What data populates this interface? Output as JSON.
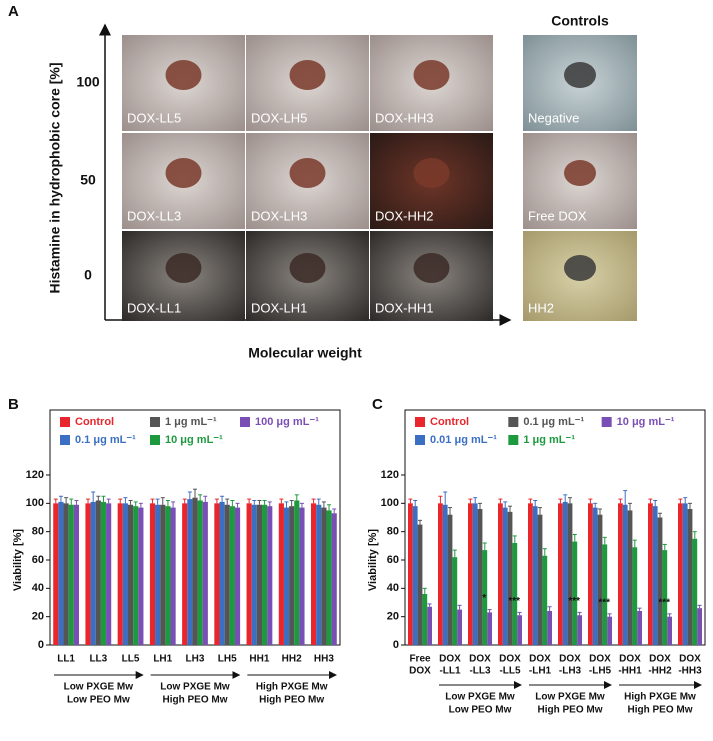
{
  "panel_a": {
    "label": "A",
    "y_axis_label": "Histamine in hydrophobic core  [%]",
    "x_axis_label": "Molecular weight",
    "row_labels": [
      "100",
      "50",
      "0"
    ],
    "images": [
      [
        "DOX-LL5",
        "DOX-LH5",
        "DOX-HH3"
      ],
      [
        "DOX-LL3",
        "DOX-LH3",
        "DOX-HH2"
      ],
      [
        "DOX-LL1",
        "DOX-LH1",
        "DOX-HH1"
      ]
    ],
    "controls_title": "Controls",
    "controls": [
      "Negative",
      "Free DOX",
      "HH2"
    ]
  },
  "chart_data": [
    {
      "type": "bar",
      "label": "B",
      "y_axis_label": "Viability [%]",
      "categories": [
        [
          "LL1"
        ],
        [
          "LL3"
        ],
        [
          "LL5"
        ],
        [
          "LH1"
        ],
        [
          "LH3"
        ],
        [
          "LH5"
        ],
        [
          "HH1"
        ],
        [
          "HH2"
        ],
        [
          "HH3"
        ]
      ],
      "ylim": [
        0,
        120
      ],
      "yticks": [
        0,
        20,
        40,
        60,
        80,
        100,
        120
      ],
      "series": [
        {
          "name": "Control",
          "color": "#e8262b",
          "values": [
            100,
            100,
            100,
            100,
            100,
            100,
            100,
            100,
            100
          ],
          "errors": [
            3,
            3,
            3,
            3,
            3,
            3,
            3,
            3,
            3
          ]
        },
        {
          "name": "0.1 μg mL⁻¹",
          "color": "#3b6fc4",
          "values": [
            101,
            101,
            100,
            99,
            103,
            101,
            99,
            97,
            99
          ],
          "errors": [
            4,
            7,
            4,
            4,
            5,
            4,
            3,
            4,
            4
          ]
        },
        {
          "name": "1 μg mL⁻¹",
          "color": "#555555",
          "values": [
            100,
            102,
            99,
            99,
            104,
            99,
            99,
            98,
            97
          ],
          "errors": [
            4,
            3,
            3,
            5,
            6,
            4,
            3,
            4,
            4
          ]
        },
        {
          "name": "10 μg mL⁻¹",
          "color": "#1e9a3e",
          "values": [
            99,
            101,
            98,
            98,
            102,
            98,
            99,
            102,
            95
          ],
          "errors": [
            4,
            4,
            3,
            4,
            4,
            4,
            3,
            4,
            4
          ]
        },
        {
          "name": "100 μg mL⁻¹",
          "color": "#7a4fb5",
          "values": [
            99,
            100,
            97,
            97,
            101,
            97,
            98,
            97,
            93
          ],
          "errors": [
            3,
            3,
            3,
            4,
            4,
            3,
            3,
            3,
            3
          ]
        }
      ],
      "significance": [
        null,
        null,
        null,
        null,
        null,
        null,
        null,
        null,
        null
      ],
      "groups": [
        [
          "Low PXGE Mw",
          "Low PEO Mw"
        ],
        [
          "Low PXGE Mw",
          "High PEO Mw"
        ],
        [
          "High PXGE Mw",
          "High PEO Mw"
        ]
      ]
    },
    {
      "type": "bar",
      "label": "C",
      "y_axis_label": "Viability [%]",
      "categories": [
        [
          "Free",
          "DOX"
        ],
        [
          "DOX",
          "-LL1"
        ],
        [
          "DOX",
          "-LL3"
        ],
        [
          "DOX",
          "-LL5"
        ],
        [
          "DOX",
          "-LH1"
        ],
        [
          "DOX",
          "-LH3"
        ],
        [
          "DOX",
          "-LH5"
        ],
        [
          "DOX",
          "-HH1"
        ],
        [
          "DOX",
          "-HH2"
        ],
        [
          "DOX",
          "-HH3"
        ]
      ],
      "ylim": [
        0,
        120
      ],
      "yticks": [
        0,
        20,
        40,
        60,
        80,
        100,
        120
      ],
      "series": [
        {
          "name": "Control",
          "color": "#e8262b",
          "values": [
            100,
            100,
            100,
            100,
            100,
            100,
            100,
            100,
            100,
            100
          ],
          "errors": [
            3,
            5,
            3,
            3,
            3,
            3,
            3,
            3,
            3,
            3
          ]
        },
        {
          "name": "0.01 μg mL⁻¹",
          "color": "#3b6fc4",
          "values": [
            98,
            99,
            100,
            97,
            98,
            101,
            97,
            99,
            98,
            100
          ],
          "errors": [
            4,
            9,
            4,
            4,
            4,
            5,
            3,
            10,
            4,
            4
          ]
        },
        {
          "name": "0.1 μg mL⁻¹",
          "color": "#555555",
          "values": [
            85,
            92,
            96,
            94,
            92,
            100,
            92,
            95,
            90,
            96
          ],
          "errors": [
            3,
            5,
            4,
            4,
            5,
            4,
            4,
            5,
            3,
            4
          ]
        },
        {
          "name": "1 μg mL⁻¹",
          "color": "#1e9a3e",
          "values": [
            36,
            62,
            67,
            72,
            63,
            73,
            71,
            69,
            67,
            75
          ],
          "errors": [
            4,
            5,
            5,
            5,
            5,
            5,
            5,
            5,
            4,
            5
          ]
        },
        {
          "name": "10 μg mL⁻¹",
          "color": "#7a4fb5",
          "values": [
            27,
            25,
            23,
            21,
            24,
            21,
            20,
            24,
            20,
            26
          ],
          "errors": [
            2,
            3,
            2,
            2,
            3,
            2,
            2,
            2,
            2,
            2
          ]
        }
      ],
      "significance": [
        null,
        null,
        "*",
        "***",
        null,
        "***",
        "***",
        null,
        "***",
        null
      ],
      "groups": [
        [
          "Low PXGE Mw",
          "Low PEO Mw"
        ],
        [
          "Low PXGE Mw",
          "High PEO Mw"
        ],
        [
          "High PXGE Mw",
          "High PEO Mw"
        ]
      ]
    }
  ]
}
